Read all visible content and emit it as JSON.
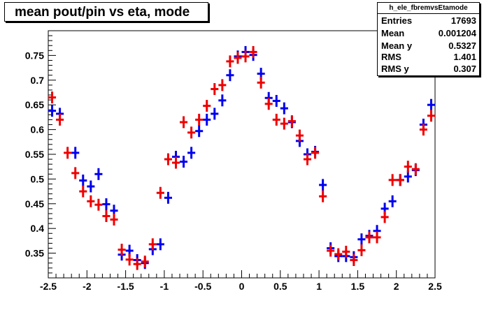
{
  "chart_data": {
    "type": "scatter",
    "title": "mean pout/pin vs eta, mode",
    "xlim": [
      -2.5,
      2.5
    ],
    "ylim": [
      0.3,
      0.8
    ],
    "x_ticks": [
      "-2.5",
      "-2",
      "-1.5",
      "-1",
      "-0.5",
      "0",
      "0.5",
      "1",
      "1.5",
      "2",
      "2.5"
    ],
    "y_ticks": [
      "0.35",
      "0.4",
      "0.45",
      "0.5",
      "0.55",
      "0.6",
      "0.65",
      "0.7",
      "0.75"
    ],
    "grid": false,
    "series": [
      {
        "color": "#0000ee",
        "x": [
          -2.45,
          -2.35,
          -2.15,
          -2.05,
          -1.95,
          -1.85,
          -1.75,
          -1.65,
          -1.55,
          -1.45,
          -1.35,
          -1.25,
          -1.15,
          -1.05,
          -0.95,
          -0.85,
          -0.75,
          -0.65,
          -0.55,
          -0.45,
          -0.35,
          -0.25,
          -0.15,
          -0.05,
          0.05,
          0.15,
          0.25,
          0.35,
          0.45,
          0.55,
          0.65,
          0.75,
          0.85,
          0.95,
          1.05,
          1.15,
          1.25,
          1.35,
          1.45,
          1.55,
          1.65,
          1.75,
          1.85,
          1.95,
          2.05,
          2.15,
          2.25,
          2.35,
          2.45
        ],
        "y": [
          0.638,
          0.632,
          0.553,
          0.497,
          0.485,
          0.51,
          0.449,
          0.436,
          0.347,
          0.355,
          0.336,
          0.33,
          0.358,
          0.368,
          0.462,
          0.545,
          0.535,
          0.553,
          0.597,
          0.62,
          0.632,
          0.659,
          0.71,
          0.748,
          0.757,
          0.751,
          0.713,
          0.664,
          0.658,
          0.643,
          0.615,
          0.577,
          0.55,
          0.555,
          0.488,
          0.36,
          0.344,
          0.344,
          0.342,
          0.378,
          0.385,
          0.395,
          0.44,
          0.455,
          0.498,
          0.505,
          0.518,
          0.61,
          0.65
        ]
      },
      {
        "color": "#ee0000",
        "x": [
          -2.45,
          -2.35,
          -2.25,
          -2.15,
          -2.05,
          -1.95,
          -1.85,
          -1.75,
          -1.65,
          -1.55,
          -1.45,
          -1.35,
          -1.25,
          -1.15,
          -1.05,
          -0.95,
          -0.85,
          -0.75,
          -0.65,
          -0.55,
          -0.45,
          -0.35,
          -0.25,
          -0.15,
          -0.05,
          0.05,
          0.15,
          0.25,
          0.35,
          0.45,
          0.55,
          0.65,
          0.75,
          0.85,
          0.95,
          1.05,
          1.15,
          1.25,
          1.35,
          1.45,
          1.55,
          1.65,
          1.75,
          1.85,
          1.95,
          2.05,
          2.15,
          2.25,
          2.35,
          2.45
        ],
        "y": [
          0.665,
          0.62,
          0.553,
          0.512,
          0.475,
          0.455,
          0.448,
          0.425,
          0.418,
          0.357,
          0.337,
          0.328,
          0.333,
          0.368,
          0.472,
          0.54,
          0.533,
          0.615,
          0.594,
          0.62,
          0.648,
          0.682,
          0.69,
          0.738,
          0.745,
          0.748,
          0.757,
          0.695,
          0.652,
          0.62,
          0.612,
          0.617,
          0.588,
          0.54,
          0.553,
          0.465,
          0.355,
          0.348,
          0.353,
          0.336,
          0.356,
          0.382,
          0.382,
          0.423,
          0.498,
          0.498,
          0.525,
          0.52,
          0.6,
          0.628
        ]
      }
    ],
    "stats": {
      "name": "h_ele_fbremvsEtamode",
      "rows": [
        {
          "label": "Entries",
          "value": "17693"
        },
        {
          "label": "Mean",
          "value": "0.001204"
        },
        {
          "label": "Mean y",
          "value": "0.5327"
        },
        {
          "label": "RMS",
          "value": "1.401"
        },
        {
          "label": "RMS y",
          "value": "0.307"
        }
      ]
    }
  }
}
